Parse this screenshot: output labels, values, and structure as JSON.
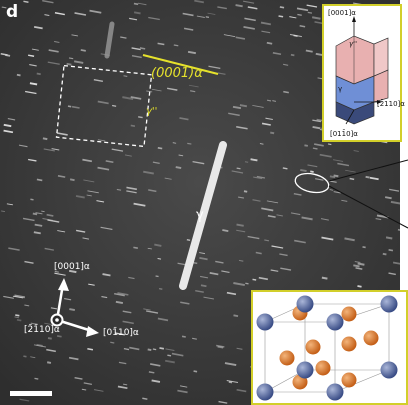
{
  "figure": {
    "panel_letter": "d",
    "plane_label": "(0001)α",
    "precipitate_gpp_label": "γ''",
    "precipitate_gamma_label": "γ",
    "axis_up": "[0001]α",
    "axis_right": "[01̄10]α",
    "axis_out": "[2̄1̄10]α"
  },
  "inset_axes": {
    "top": "[0001]α",
    "right": "[2̄110]α",
    "bottom": "[011̄0]α",
    "gpp": "γ''",
    "gamma": "γ"
  },
  "colors": {
    "micrograph_bg": "#3e3e3e",
    "highlight_yellow": "#e6e22c",
    "inset_border": "#d2cf2a",
    "prism_pink": "#e8b0b0",
    "prism_blue": "#6f8fd6",
    "atom_blue": "#4a5d94",
    "atom_orange": "#d9782a"
  },
  "icons": [
    "dot-in-circle-icon",
    "arrow-up-icon",
    "arrow-right-icon",
    "scale-bar"
  ]
}
